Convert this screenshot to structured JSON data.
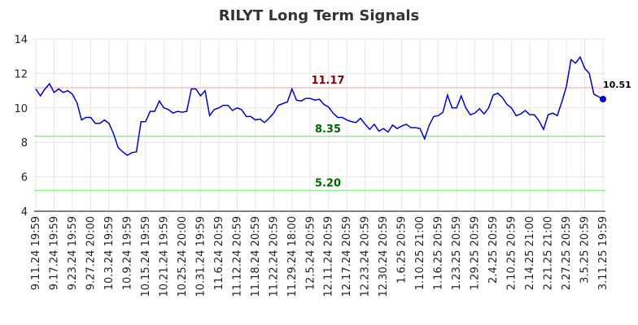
{
  "chart_data": {
    "type": "line",
    "title": "RILYT Long Term Signals",
    "categories": [
      "9.11.24 19:59",
      null,
      null,
      null,
      "9.17.24 19:59",
      null,
      null,
      null,
      "9.23.24 19:59",
      null,
      null,
      null,
      "9.27.24 20:00",
      null,
      null,
      null,
      "10.3.24 19:59",
      null,
      null,
      null,
      "10.9.24 19:59",
      null,
      null,
      null,
      "10.15.24 19:59",
      null,
      null,
      null,
      "10.21.24 19:59",
      null,
      null,
      null,
      "10.25.24 20:00",
      null,
      null,
      null,
      "10.31.24 19:59",
      null,
      null,
      null,
      "11.6.24 20:59",
      null,
      null,
      null,
      "11.12.24 20:59",
      null,
      null,
      null,
      "11.18.24 20:59",
      null,
      null,
      null,
      "11.22.24 20:59",
      null,
      null,
      null,
      "11.29.24 18:00",
      null,
      null,
      null,
      "12.5.24 20:59",
      null,
      null,
      null,
      "12.11.24 20:59",
      null,
      null,
      null,
      "12.17.24 20:59",
      null,
      null,
      null,
      "12.23.24 20:59",
      null,
      null,
      null,
      "12.30.24 20:59",
      null,
      null,
      null,
      "1.6.25 20:59",
      null,
      null,
      null,
      "1.10.25 21:00",
      null,
      null,
      null,
      "1.16.25 20:59",
      null,
      null,
      null,
      "1.23.25 20:59",
      null,
      null,
      null,
      "1.29.25 20:59",
      null,
      null,
      null,
      "2.4.25 20:59",
      null,
      null,
      null,
      "2.10.25 20:59",
      null,
      null,
      null,
      "2.14.25 21:00",
      null,
      null,
      null,
      "2.21.25 21:00",
      null,
      null,
      null,
      "2.27.25 20:59",
      null,
      null,
      null,
      "3.5.25 20:59",
      null,
      null,
      null,
      "3.11.25 19:59"
    ],
    "series": [
      {
        "color": "#0000cc",
        "values": [
          11.1,
          10.7,
          11.1,
          11.4,
          10.9,
          11.1,
          10.9,
          11.0,
          10.8,
          10.3,
          9.3,
          9.45,
          9.45,
          9.1,
          9.1,
          9.3,
          9.1,
          8.5,
          7.7,
          7.45,
          7.25,
          7.4,
          7.45,
          9.2,
          9.2,
          9.8,
          9.8,
          10.4,
          10.0,
          9.9,
          9.7,
          9.8,
          9.75,
          9.8,
          11.1,
          11.1,
          10.7,
          11.0,
          9.55,
          9.9,
          10.0,
          10.15,
          10.15,
          9.85,
          10.0,
          9.9,
          9.5,
          9.5,
          9.3,
          9.35,
          9.15,
          9.4,
          9.7,
          10.15,
          10.25,
          10.35,
          11.1,
          10.45,
          10.4,
          10.55,
          10.55,
          10.45,
          10.5,
          10.2,
          10.05,
          9.7,
          9.45,
          9.45,
          9.3,
          9.2,
          9.15,
          9.4,
          9.05,
          8.75,
          9.05,
          8.65,
          8.8,
          8.6,
          9.0,
          8.8,
          8.95,
          9.05,
          8.85,
          8.85,
          8.8,
          8.2,
          9.0,
          9.5,
          9.55,
          9.75,
          10.75,
          10.0,
          10.0,
          10.7,
          10.0,
          9.6,
          9.7,
          9.95,
          9.65,
          10.0,
          10.75,
          10.85,
          10.6,
          10.2,
          10.0,
          9.55,
          9.65,
          9.85,
          9.6,
          9.6,
          9.25,
          8.75,
          9.6,
          9.7,
          9.55,
          10.35,
          11.25,
          12.8,
          12.6,
          12.95,
          12.3,
          12.0,
          10.8,
          10.65,
          10.51
        ]
      }
    ],
    "hlines": [
      {
        "value": 11.17,
        "color": "#ffbbbb",
        "text_color": "#8b0000"
      },
      {
        "value": 8.35,
        "color": "#90ee90",
        "text_color": "#006400"
      },
      {
        "value": 5.2,
        "label": "5.20",
        "color": "#90ee90",
        "text_color": "#006400"
      }
    ],
    "ylim": [
      4,
      14
    ],
    "yticks": [
      4,
      6,
      8,
      10,
      12,
      14
    ],
    "grid": true
  }
}
